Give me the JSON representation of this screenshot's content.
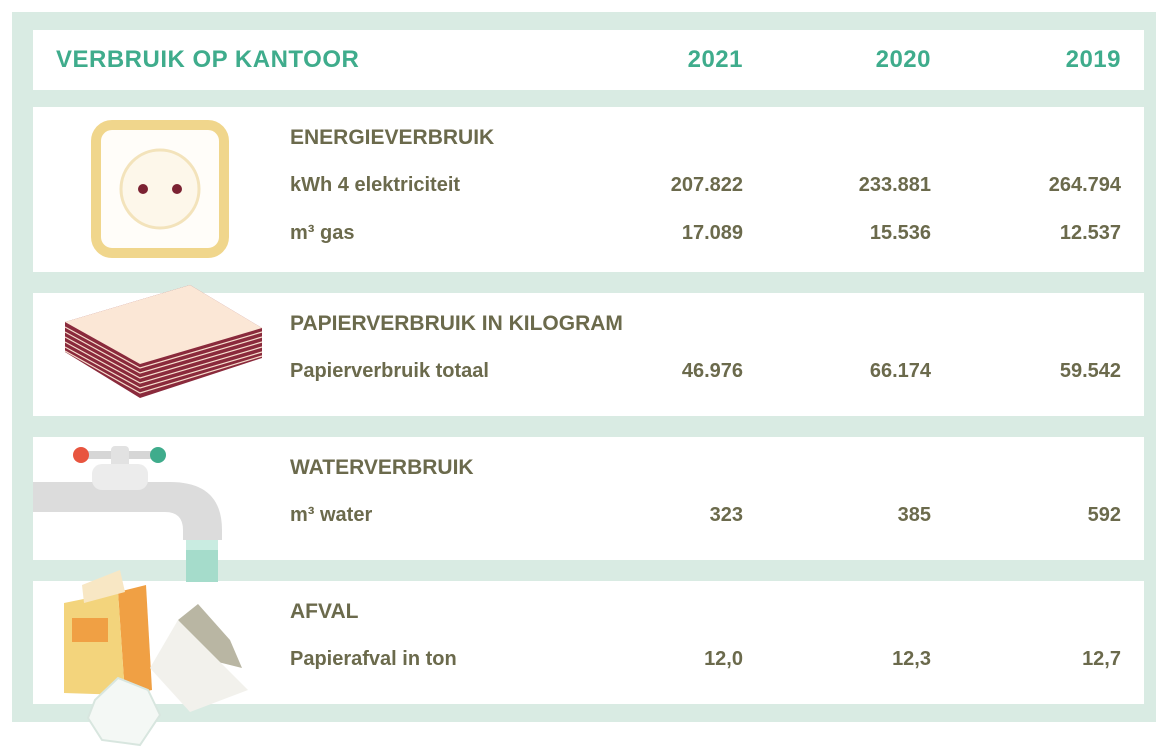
{
  "header": {
    "title": "VERBRUIK OP KANTOOR",
    "years": [
      "2021",
      "2020",
      "2019"
    ]
  },
  "sections": [
    {
      "title": "ENERGIEVERBRUIK",
      "rows": [
        {
          "label": "kWh 4 elektriciteit",
          "values": [
            "207.822",
            "233.881",
            "264.794"
          ]
        },
        {
          "label": "m³ gas",
          "values": [
            "17.089",
            "15.536",
            "12.537"
          ]
        }
      ]
    },
    {
      "title": "PAPIERVERBRUIK IN KILOGRAM",
      "rows": [
        {
          "label": "Papierverbruik totaal",
          "values": [
            "46.976",
            "66.174",
            "59.542"
          ]
        }
      ]
    },
    {
      "title": "WATERVERBRUIK",
      "rows": [
        {
          "label": "m³ water",
          "values": [
            "323",
            "385",
            "592"
          ]
        }
      ]
    },
    {
      "title": "AFVAL",
      "rows": [
        {
          "label": "Papierafval in ton",
          "values": [
            "12,0",
            "12,3",
            "12,7"
          ]
        }
      ]
    }
  ]
}
